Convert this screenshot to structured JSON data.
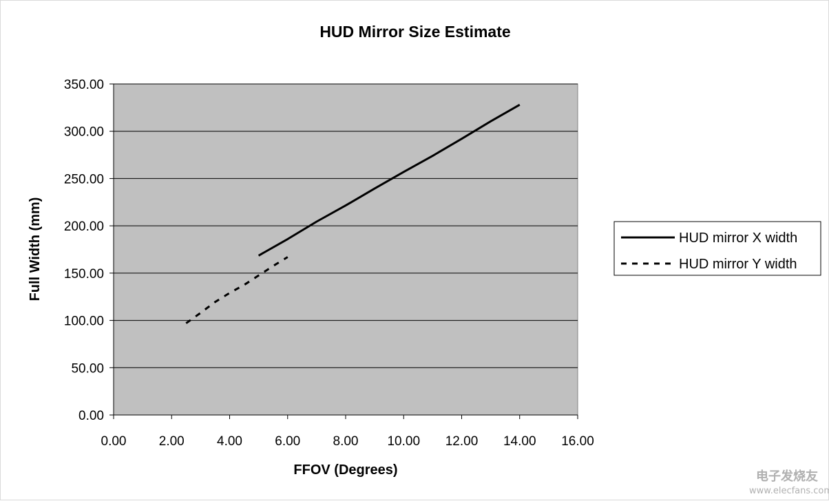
{
  "chart_data": {
    "type": "line",
    "title": "HUD Mirror Size Estimate",
    "xlabel": "FFOV (Degrees)",
    "ylabel": "Full Width (mm)",
    "xlim": [
      0,
      16
    ],
    "ylim": [
      0,
      350
    ],
    "x_ticks": [
      0,
      2,
      4,
      6,
      8,
      10,
      12,
      14,
      16
    ],
    "x_tick_labels": [
      "0.00",
      "2.00",
      "4.00",
      "6.00",
      "8.00",
      "10.00",
      "12.00",
      "14.00",
      "16.00"
    ],
    "y_ticks": [
      0,
      50,
      100,
      150,
      200,
      250,
      300,
      350
    ],
    "y_tick_labels": [
      "0.00",
      "50.00",
      "100.00",
      "150.00",
      "200.00",
      "250.00",
      "300.00",
      "350.00"
    ],
    "grid": "horizontal",
    "plot_background": "#c0c0c0",
    "legend_position": "right",
    "series": [
      {
        "name": "HUD mirror X width",
        "style": "solid",
        "color": "#000000",
        "x": [
          5,
          6,
          7,
          8,
          9,
          10,
          11,
          12,
          13,
          14
        ],
        "y": [
          168.5,
          186,
          204.5,
          221.5,
          239.5,
          257,
          274,
          292,
          310.5,
          328
        ]
      },
      {
        "name": "HUD mirror Y width",
        "style": "dashed",
        "color": "#000000",
        "x": [
          2.5,
          3,
          3.5,
          4,
          4.5,
          5,
          5.5,
          6
        ],
        "y": [
          97,
          108,
          119.5,
          129,
          137.5,
          147.5,
          157.5,
          167
        ]
      }
    ]
  },
  "watermark": {
    "cn_text": "电子发烧友",
    "url_text": "www.elecfans.com"
  }
}
